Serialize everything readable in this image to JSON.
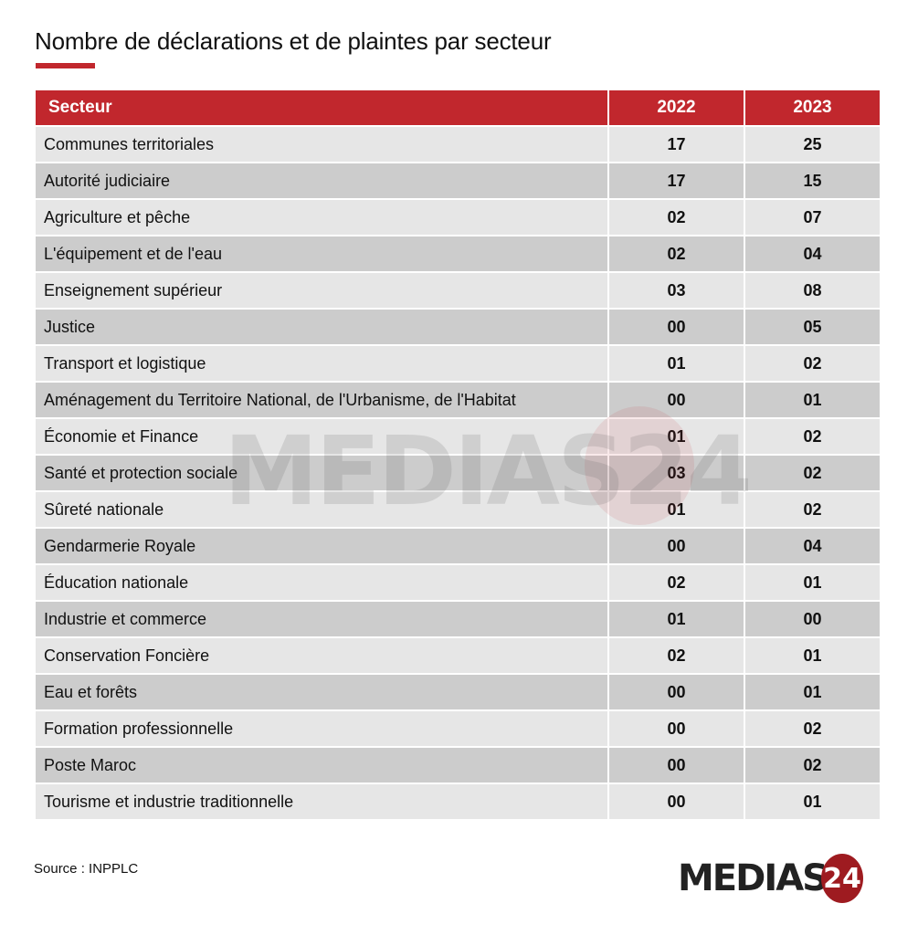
{
  "title": "Nombre de déclarations et de plaintes par secteur",
  "colors": {
    "accent": "#c1272d",
    "row_light": "#e6e6e6",
    "row_dark": "#cccccc",
    "logo_red": "#9e1b20"
  },
  "table": {
    "headers": [
      "Secteur",
      "2022",
      "2023"
    ],
    "rows": [
      [
        "Communes territoriales",
        "17",
        "25"
      ],
      [
        "Autorité judiciaire",
        "17",
        "15"
      ],
      [
        "Agriculture et pêche",
        "02",
        "07"
      ],
      [
        "L'équipement et de l'eau",
        "02",
        "04"
      ],
      [
        "Enseignement supérieur",
        "03",
        "08"
      ],
      [
        "Justice",
        "00",
        "05"
      ],
      [
        "Transport et logistique",
        "01",
        "02"
      ],
      [
        "Aménagement du Territoire National, de l'Urbanisme, de l'Habitat",
        "00",
        "01"
      ],
      [
        "Économie et Finance",
        "01",
        "02"
      ],
      [
        "Santé et protection sociale",
        "03",
        "02"
      ],
      [
        "Sûreté nationale",
        "01",
        "02"
      ],
      [
        "Gendarmerie Royale",
        "00",
        "04"
      ],
      [
        "Éducation nationale",
        "02",
        "01"
      ],
      [
        "Industrie et commerce",
        "01",
        "00"
      ],
      [
        "Conservation Foncière",
        "02",
        "01"
      ],
      [
        "Eau et forêts",
        "00",
        "01"
      ],
      [
        "Formation professionnelle",
        "00",
        "02"
      ],
      [
        "Poste Maroc",
        "00",
        "02"
      ],
      [
        "Tourisme et industrie traditionnelle",
        "00",
        "01"
      ]
    ]
  },
  "watermark": "MEDIAS24",
  "source": "Source : INPPLC",
  "logo": {
    "text": "MEDIAS",
    "badge": "24"
  },
  "chart_data": {
    "type": "table",
    "title": "Nombre de déclarations et de plaintes par secteur",
    "categories": [
      "Communes territoriales",
      "Autorité judiciaire",
      "Agriculture et pêche",
      "L'équipement et de l'eau",
      "Enseignement supérieur",
      "Justice",
      "Transport et logistique",
      "Aménagement du Territoire National, de l'Urbanisme, de l'Habitat",
      "Économie et Finance",
      "Santé et protection sociale",
      "Sûreté nationale",
      "Gendarmerie Royale",
      "Éducation nationale",
      "Industrie et commerce",
      "Conservation Foncière",
      "Eau et forêts",
      "Formation professionnelle",
      "Poste Maroc",
      "Tourisme et industrie traditionnelle"
    ],
    "series": [
      {
        "name": "2022",
        "values": [
          17,
          17,
          2,
          2,
          3,
          0,
          1,
          0,
          1,
          3,
          1,
          0,
          2,
          1,
          2,
          0,
          0,
          0,
          0
        ]
      },
      {
        "name": "2023",
        "values": [
          25,
          15,
          7,
          4,
          8,
          5,
          2,
          1,
          2,
          2,
          2,
          4,
          1,
          0,
          1,
          1,
          2,
          2,
          1
        ]
      }
    ],
    "source": "INPPLC"
  }
}
